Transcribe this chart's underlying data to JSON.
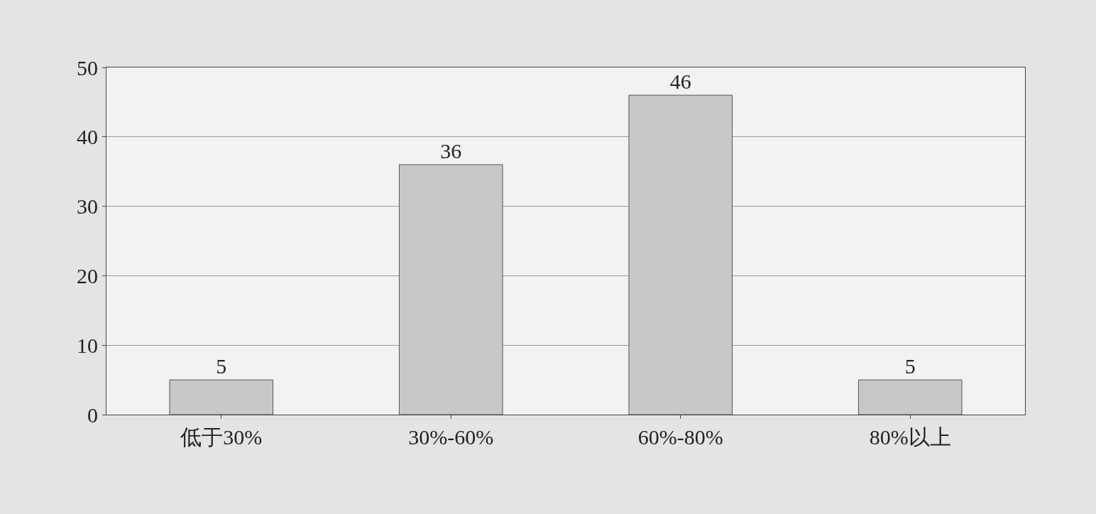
{
  "chart_data": {
    "type": "bar",
    "categories": [
      "低于30%",
      "30%-60%",
      "60%-80%",
      "80%以上"
    ],
    "values": [
      5,
      36,
      46,
      5
    ],
    "color": "#c8c8c8",
    "ylim": [
      0,
      50
    ],
    "yticks": [
      0,
      10,
      20,
      30,
      40,
      50
    ],
    "grid": "y",
    "data_labels": true,
    "legend": false
  }
}
